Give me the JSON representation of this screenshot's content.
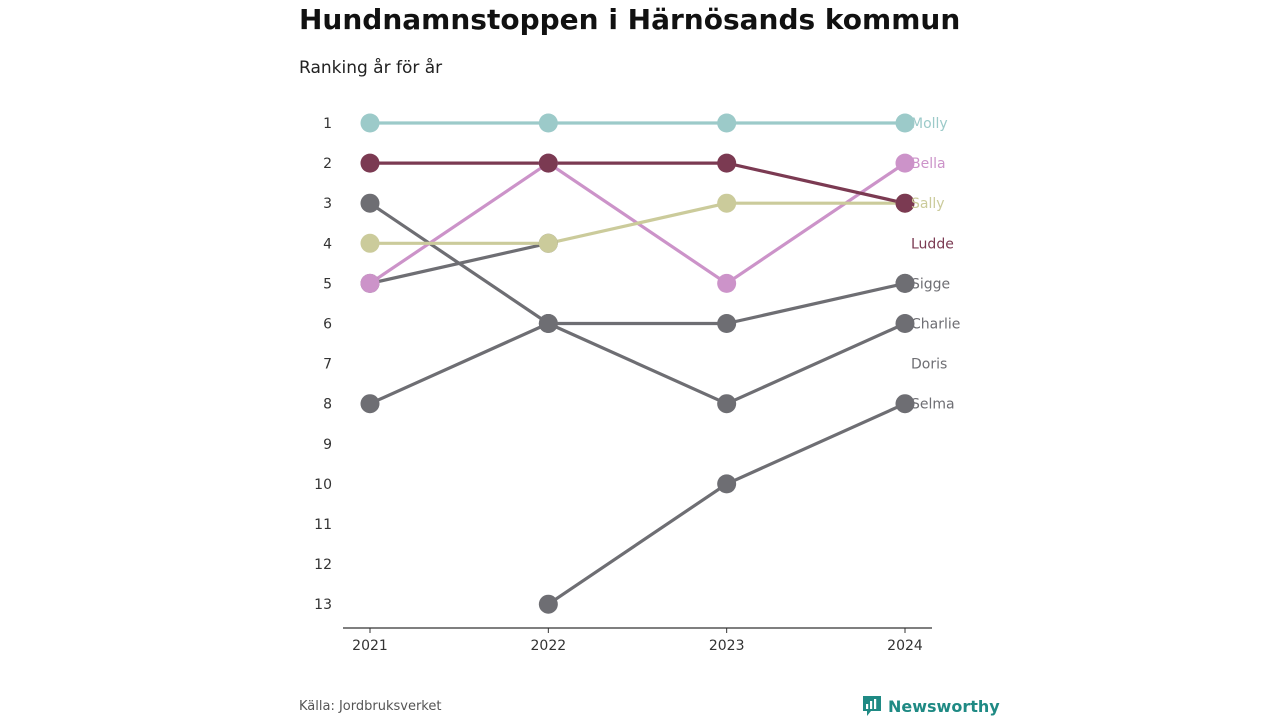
{
  "header": {
    "title": "Hundnamnstoppen i Härnösands kommun",
    "subtitle": "Ranking år för år"
  },
  "footer": {
    "source": "Källa: Jordbruksverket",
    "brand": "Newsworthy"
  },
  "colors": {
    "Molly": "#9ccac9",
    "Ludde": "#7b3a52",
    "Bella": "#cc93c9",
    "Sally": "#cbcb9b",
    "gray": "#6e6e73",
    "axis": "#333333"
  },
  "chart_data": {
    "type": "line",
    "x": [
      "2021",
      "2022",
      "2023",
      "2024"
    ],
    "y_ticks": [
      "1",
      "2",
      "3",
      "4",
      "5",
      "6",
      "7",
      "8",
      "9",
      "10",
      "11",
      "12",
      "13"
    ],
    "ylim": [
      1,
      13
    ],
    "y_reversed": true,
    "grid": false,
    "legend": "inline-right",
    "series": [
      {
        "name": "Molly",
        "values": [
          1,
          1,
          1,
          1
        ],
        "color": "Molly"
      },
      {
        "name": "Bella",
        "values": [
          5,
          2,
          5,
          2
        ],
        "color": "Bella"
      },
      {
        "name": "Sally",
        "values": [
          4,
          4,
          3,
          3
        ],
        "color": "Sally"
      },
      {
        "name": "Ludde",
        "values": [
          2,
          2,
          2,
          3
        ],
        "color": "Ludde"
      },
      {
        "name": "Sigge",
        "values": [
          5,
          4,
          null,
          5
        ],
        "color": "gray"
      },
      {
        "name": "Charlie",
        "values": [
          3,
          6,
          8,
          6
        ],
        "color": "gray"
      },
      {
        "name": "Doris",
        "values": [
          8,
          6,
          6,
          5
        ],
        "color": "gray"
      },
      {
        "name": "Selma",
        "values": [
          null,
          13,
          10,
          8
        ],
        "color": "gray"
      }
    ],
    "end_labels": [
      "Molly",
      "Bella",
      "Sally",
      "Ludde",
      "Sigge",
      "Charlie",
      "Doris",
      "Selma"
    ]
  }
}
